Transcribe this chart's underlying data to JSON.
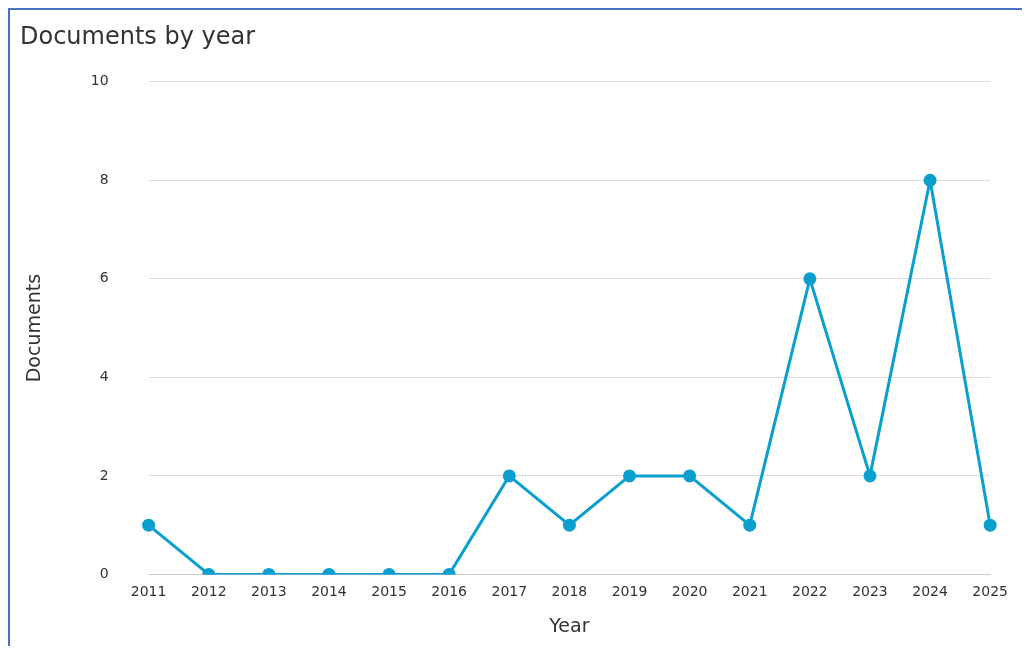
{
  "chart_data": {
    "type": "line",
    "title": "Documents by year",
    "xlabel": "Year",
    "ylabel": "Documents",
    "categories": [
      "2011",
      "2012",
      "2013",
      "2014",
      "2015",
      "2016",
      "2017",
      "2018",
      "2019",
      "2020",
      "2021",
      "2022",
      "2023",
      "2024",
      "2025"
    ],
    "series": [
      {
        "color": "#0a9fcf",
        "values": [
          1,
          0,
          0,
          0,
          0,
          0,
          2,
          1,
          2,
          2,
          1,
          6,
          2,
          8,
          1
        ]
      }
    ],
    "ylim": [
      0,
      10
    ],
    "yticks": [
      0,
      2,
      4,
      6,
      8,
      10
    ],
    "grid": "y",
    "legend": false,
    "marker": "circle",
    "line_style": "solid"
  }
}
